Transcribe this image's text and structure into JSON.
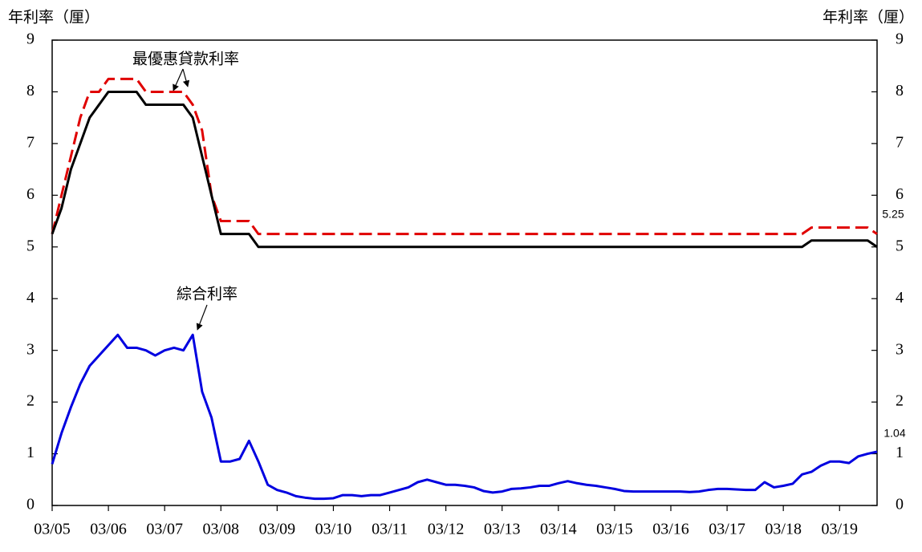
{
  "chart_data": {
    "type": "line",
    "y_label": "年利率（厘）",
    "y2_label": "年利率（厘）",
    "annotations": [
      "最優惠貸款利率",
      "綜合利率"
    ],
    "categories": [
      "03/05",
      null,
      null,
      null,
      null,
      null,
      "03/06",
      null,
      null,
      null,
      null,
      null,
      "03/07",
      null,
      null,
      null,
      null,
      null,
      "03/08",
      null,
      null,
      null,
      null,
      null,
      "03/09",
      null,
      null,
      null,
      null,
      null,
      "03/10",
      null,
      null,
      null,
      null,
      null,
      "03/11",
      null,
      null,
      null,
      null,
      null,
      "03/12",
      null,
      null,
      null,
      null,
      null,
      "03/13",
      null,
      null,
      null,
      null,
      null,
      "03/14",
      null,
      null,
      null,
      null,
      null,
      "03/15",
      null,
      null,
      null,
      null,
      null,
      "03/16",
      null,
      null,
      null,
      null,
      null,
      "03/17",
      null,
      null,
      null,
      null,
      null,
      "03/18",
      null,
      null,
      null,
      null,
      null,
      "03/19",
      null,
      null,
      null,
      null
    ],
    "series": [
      {
        "color": "#000000",
        "dash": false,
        "values": [
          5.25,
          5.75,
          6.5,
          7.0,
          7.5,
          7.75,
          8.0,
          8.0,
          8.0,
          8.0,
          7.75,
          7.75,
          7.75,
          7.75,
          7.75,
          7.5,
          6.75,
          6.0,
          5.25,
          5.25,
          5.25,
          5.25,
          5.0,
          5.0,
          5.0,
          5.0,
          5.0,
          5.0,
          5.0,
          5.0,
          5.0,
          5.0,
          5.0,
          5.0,
          5.0,
          5.0,
          5.0,
          5.0,
          5.0,
          5.0,
          5.0,
          5.0,
          5.0,
          5.0,
          5.0,
          5.0,
          5.0,
          5.0,
          5.0,
          5.0,
          5.0,
          5.0,
          5.0,
          5.0,
          5.0,
          5.0,
          5.0,
          5.0,
          5.0,
          5.0,
          5.0,
          5.0,
          5.0,
          5.0,
          5.0,
          5.0,
          5.0,
          5.0,
          5.0,
          5.0,
          5.0,
          5.0,
          5.0,
          5.0,
          5.0,
          5.0,
          5.0,
          5.0,
          5.0,
          5.0,
          5.0,
          5.125,
          5.125,
          5.125,
          5.125,
          5.125,
          5.125,
          5.125,
          5.0
        ]
      },
      {
        "color": "#e00000",
        "dash": true,
        "values": [
          5.25,
          6.0,
          6.75,
          7.5,
          8.0,
          8.0,
          8.25,
          8.25,
          8.25,
          8.25,
          8.0,
          8.0,
          8.0,
          8.0,
          8.0,
          7.75,
          7.25,
          6.0,
          5.5,
          5.5,
          5.5,
          5.5,
          5.25,
          5.25,
          5.25,
          5.25,
          5.25,
          5.25,
          5.25,
          5.25,
          5.25,
          5.25,
          5.25,
          5.25,
          5.25,
          5.25,
          5.25,
          5.25,
          5.25,
          5.25,
          5.25,
          5.25,
          5.25,
          5.25,
          5.25,
          5.25,
          5.25,
          5.25,
          5.25,
          5.25,
          5.25,
          5.25,
          5.25,
          5.25,
          5.25,
          5.25,
          5.25,
          5.25,
          5.25,
          5.25,
          5.25,
          5.25,
          5.25,
          5.25,
          5.25,
          5.25,
          5.25,
          5.25,
          5.25,
          5.25,
          5.25,
          5.25,
          5.25,
          5.25,
          5.25,
          5.25,
          5.25,
          5.25,
          5.25,
          5.25,
          5.25,
          5.375,
          5.375,
          5.375,
          5.375,
          5.375,
          5.375,
          5.375,
          5.25
        ]
      },
      {
        "color": "#0000e0",
        "dash": false,
        "values": [
          0.8,
          1.4,
          1.9,
          2.35,
          2.7,
          2.9,
          3.1,
          3.3,
          3.05,
          3.05,
          3.0,
          2.9,
          3.0,
          3.05,
          3.0,
          3.3,
          2.2,
          1.7,
          0.85,
          0.85,
          0.9,
          1.25,
          0.85,
          0.4,
          0.3,
          0.25,
          0.18,
          0.15,
          0.13,
          0.13,
          0.14,
          0.2,
          0.2,
          0.18,
          0.2,
          0.2,
          0.25,
          0.3,
          0.35,
          0.45,
          0.5,
          0.45,
          0.4,
          0.4,
          0.38,
          0.35,
          0.28,
          0.25,
          0.27,
          0.32,
          0.33,
          0.35,
          0.38,
          0.38,
          0.43,
          0.47,
          0.43,
          0.4,
          0.38,
          0.35,
          0.32,
          0.28,
          0.27,
          0.27,
          0.27,
          0.27,
          0.27,
          0.27,
          0.26,
          0.27,
          0.3,
          0.32,
          0.32,
          0.31,
          0.3,
          0.3,
          0.45,
          0.35,
          0.38,
          0.42,
          0.6,
          0.65,
          0.77,
          0.85,
          0.85,
          0.82,
          0.95,
          1.0,
          1.04
        ]
      }
    ],
    "ylim": [
      0,
      9
    ],
    "yticks": [
      0,
      1,
      2,
      3,
      4,
      5,
      6,
      7,
      8,
      9
    ],
    "y2lim": [
      0,
      9
    ],
    "y2ticks": [
      0,
      1,
      2,
      3,
      4,
      5,
      6,
      7,
      8,
      9
    ],
    "grid": false
  }
}
